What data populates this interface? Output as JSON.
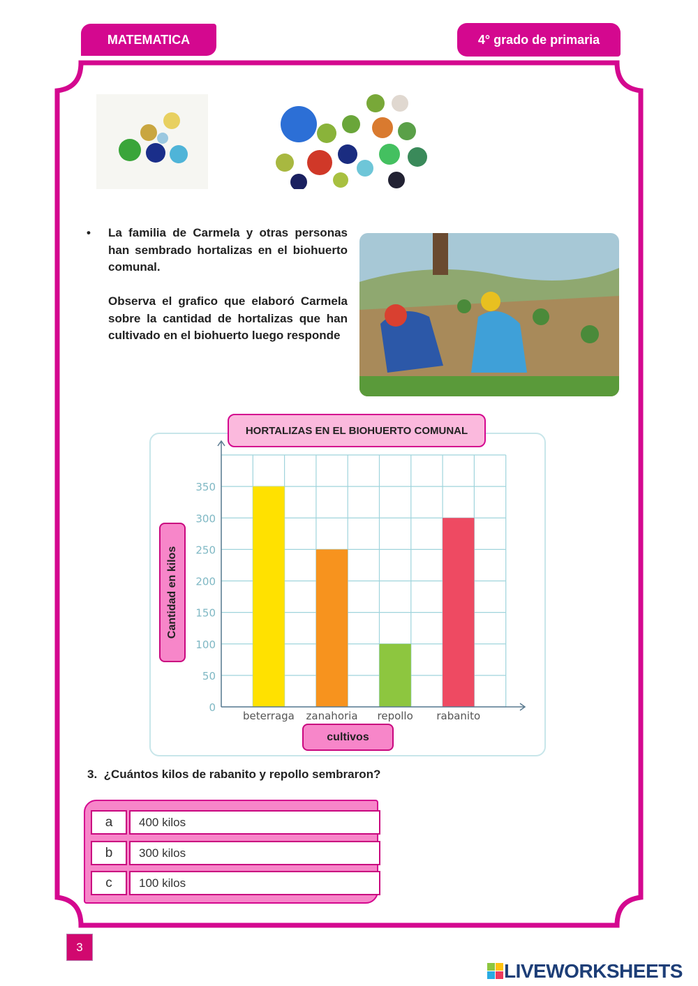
{
  "header": {
    "subject": "MATEMATICA",
    "grade": "4° grado de primaria"
  },
  "intro": {
    "bullet": "La familia de Carmela y otras personas han sembrado hortalizas en el biohuerto comunal.",
    "instruction": "Observa el grafico que elaboró Carmela sobre la cantidad de hortalizas que han cultivado en el biohuerto luego responde"
  },
  "colors": {
    "accent": "#d4088f",
    "label_bg": "#f786c9",
    "title_bg": "#fbb9dd",
    "grid": "#9fd4dc"
  },
  "chart_data": {
    "type": "bar",
    "title": "HORTALIZAS EN EL BIOHUERTO COMUNAL",
    "xlabel": "cultivos",
    "ylabel": "Cantidad en kilos",
    "categories": [
      "beterraga",
      "zanahoria",
      "repollo",
      "rabanito"
    ],
    "values": [
      350,
      250,
      100,
      300
    ],
    "bar_colors": [
      "#ffe100",
      "#f7931e",
      "#8dc63f",
      "#ee4a62"
    ],
    "yticks": [
      "0",
      "50",
      "100",
      "150",
      "200",
      "250",
      "300",
      "350"
    ],
    "ylim": [
      0,
      400
    ],
    "grid": true
  },
  "question": {
    "number": "3.",
    "text": "¿Cuántos kilos de rabanito y repollo sembraron?",
    "options": [
      {
        "letter": "a",
        "text": "400 kilos"
      },
      {
        "letter": "b",
        "text": "300 kilos"
      },
      {
        "letter": "c",
        "text": "100 kilos"
      }
    ]
  },
  "footer": {
    "page": "3",
    "logo": "LIVEWORKSHEETS"
  }
}
